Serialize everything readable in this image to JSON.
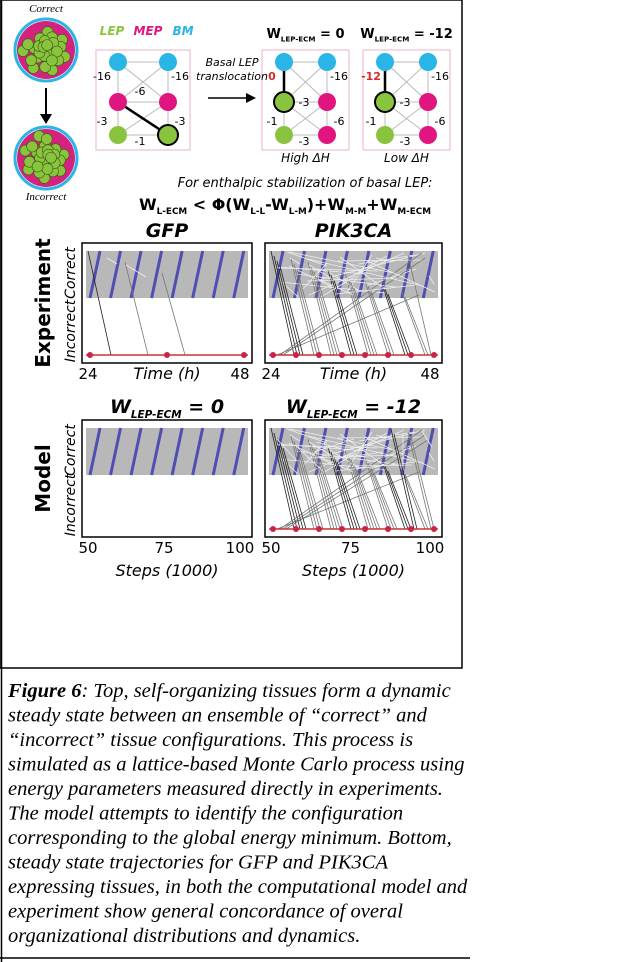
{
  "schematic": {
    "correct": "Correct",
    "incorrect": "Incorrect",
    "legend": [
      "LEP",
      "MEP",
      "BM"
    ],
    "arrow_label": [
      "Basal LEP",
      "translocation"
    ],
    "lattices": [
      {
        "labels": [
          "-16",
          "-16",
          "-6",
          "-3",
          "-3",
          "-1"
        ]
      },
      {
        "title": [
          "W",
          "LEP-ECM",
          " = 0"
        ],
        "labels": [
          "0",
          "-16",
          "-3",
          "-1",
          "-6",
          "-3"
        ],
        "note": "High ΔH"
      },
      {
        "title": [
          "W",
          "LEP-ECM",
          " = -12"
        ],
        "labels": [
          "-12",
          "-16",
          "-3",
          "-1",
          "-6",
          "-3"
        ],
        "note": "Low ΔH"
      }
    ],
    "condition": "For enthalpic stabilization of basal LEP:",
    "equation": [
      "W",
      "L-ECM",
      " < Φ(W",
      "L-L",
      "-W",
      "L-M",
      ")+W",
      "M-M",
      "+W",
      "M-ECM"
    ]
  },
  "plots": {
    "rows": [
      {
        "label": "Experiment",
        "titles": [
          [
            "GFP"
          ],
          [
            "PIK3CA"
          ]
        ],
        "ticks": [
          "24",
          "48"
        ],
        "xlabel": "Time (h)"
      },
      {
        "label": "Model",
        "titles": [
          [
            "W",
            "LEP-ECM",
            " = 0"
          ],
          [
            "W",
            "LEP-ECM",
            " = -12"
          ]
        ],
        "ticks": [
          "50",
          "75",
          "100"
        ],
        "xlabel": "Steps (1000)"
      }
    ],
    "y_labels": [
      "Correct",
      "Incorrect"
    ]
  },
  "caption": {
    "label": "Figure 6",
    "lines": [
      ": Top, self-organizing tissues form a dynamic",
      "steady state between an ensemble of “correct” and",
      "“incorrect” tissue configurations. This process is",
      "simulated as a lattice-based Monte Carlo process using",
      "energy parameters measured directly in experiments.",
      "The model attempts to identify the configuration",
      "corresponding to the global energy minimum. Bottom,",
      "steady state trajectories for GFP and PIK3CA",
      "expressing tissues, in both the computational model and",
      "experiment show general concordance of overal",
      "organizational distributions and dynamics."
    ]
  }
}
